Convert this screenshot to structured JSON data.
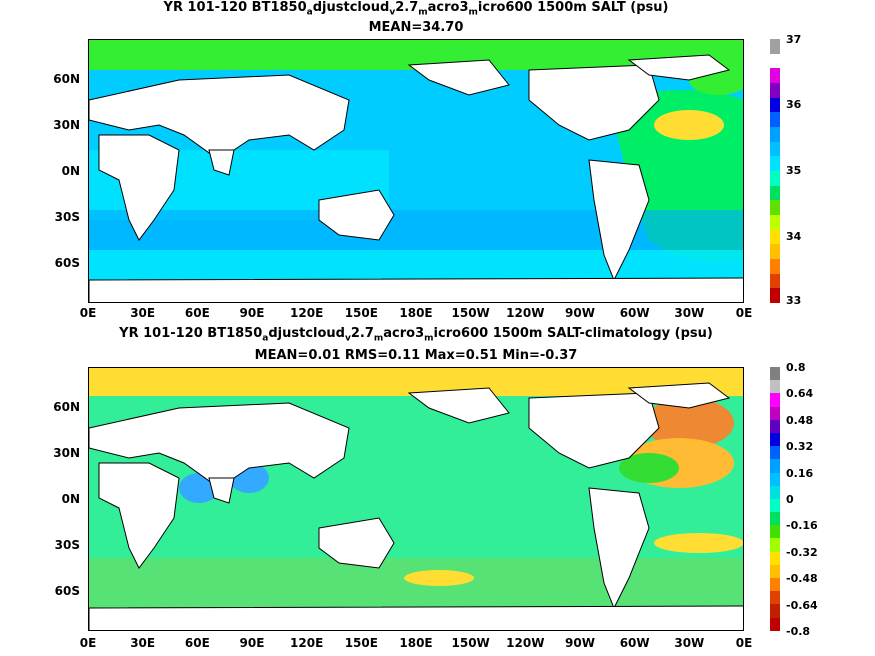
{
  "panel1": {
    "title_a": "YR 101-120 BT1850",
    "sub_a": "a",
    "title_b": "djustcloud",
    "sub_b": "v",
    "title_c": "2.7",
    "sub_c": "m",
    "title_d": "acro3",
    "sub_d": "m",
    "title_e": "icro600 1500m SALT (psu)",
    "stats": "MEAN=34.70",
    "cbar_labels": [
      "37",
      "36",
      "35",
      "34",
      "33"
    ],
    "cbar_colors": [
      "#a0a0a0",
      "#ffffff",
      "#e000e0",
      "#8000c0",
      "#0000e0",
      "#0060ff",
      "#00a0ff",
      "#00c0ff",
      "#00e0ff",
      "#00ffc0",
      "#00e060",
      "#60e000",
      "#c0ff00",
      "#ffe000",
      "#ffc000",
      "#ff8000",
      "#e04000",
      "#c00000"
    ]
  },
  "panel2": {
    "title_a": "YR 101-120 BT1850",
    "sub_a": "a",
    "title_b": "djustcloud",
    "sub_b": "v",
    "title_c": "2.7",
    "sub_c": "m",
    "title_d": "acro3",
    "sub_d": "m",
    "title_e": "icro600 1500m SALT-climatology (psu)",
    "stats": "MEAN=0.01   RMS=0.11   Max=0.51   Min=-0.37",
    "cbar_labels": [
      "0.8",
      "0.64",
      "0.48",
      "0.32",
      "0.16",
      "0",
      "-0.16",
      "-0.32",
      "-0.48",
      "-0.64",
      "-0.8"
    ],
    "cbar_colors": [
      "#808080",
      "#c0c0c0",
      "#ff00ff",
      "#c000c0",
      "#6000c0",
      "#0000e0",
      "#0060ff",
      "#00a0ff",
      "#00c0ff",
      "#00e0e0",
      "#00ffc0",
      "#00e060",
      "#40e000",
      "#a0ff00",
      "#ffe000",
      "#ffc000",
      "#ff8000",
      "#e04000",
      "#c02000",
      "#c00000"
    ]
  },
  "lat_labels": [
    "60N",
    "30N",
    "0N",
    "30S",
    "60S"
  ],
  "lon_labels": [
    "0E",
    "30E",
    "60E",
    "90E",
    "120E",
    "150E",
    "180E",
    "150W",
    "120W",
    "90W",
    "60W",
    "30W",
    "0E"
  ]
}
